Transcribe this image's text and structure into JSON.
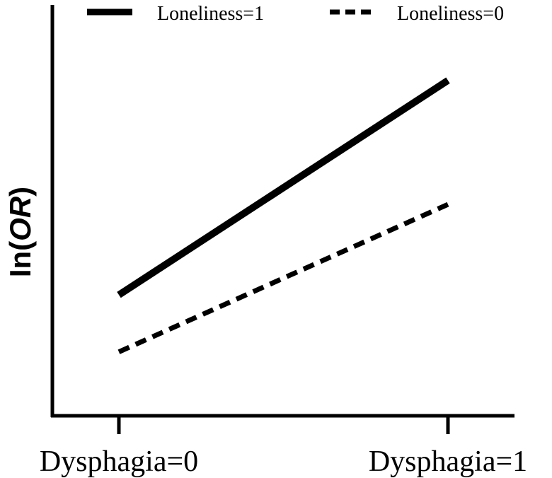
{
  "chart_data": {
    "type": "line",
    "x": [
      "Dysphagia=0",
      "Dysphagia=1"
    ],
    "ylabel": "ln(OR)",
    "ylabel_parts": {
      "prefix": "In(",
      "italic": "OR",
      "suffix": ")"
    },
    "xlabel": "",
    "title": "",
    "ylim": [
      0,
      10
    ],
    "grid": false,
    "legend_position": "top",
    "series": [
      {
        "name": "Loneliness=1",
        "values": [
          3.1,
          9.5
        ],
        "style": "solid",
        "color": "#000000"
      },
      {
        "name": "Loneliness=0",
        "values": [
          1.4,
          5.8
        ],
        "style": "dashed",
        "color": "#000000"
      }
    ]
  }
}
